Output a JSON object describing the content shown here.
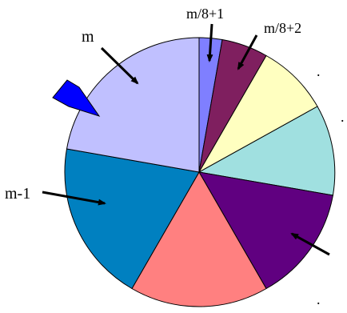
{
  "labels": {
    "m": "m",
    "m_minus_1": "m-1",
    "m_over_8_plus_1": "m/8+1",
    "m_over_8_plus_2": "m/8+2",
    "dot": "."
  },
  "colors": {
    "slice_thin_blue": "#7f7fff",
    "slice_maroon": "#7f1f5f",
    "slice_cream": "#ffffc0",
    "slice_aqua": "#a0e0e0",
    "slice_purple": "#600080",
    "slice_salmon": "#ff8080",
    "slice_teal_blue": "#0080c0",
    "slice_lavender": "#c0c0ff",
    "pointer": "#0000ff",
    "outline": "#000000",
    "background": "#ffffff"
  }
}
